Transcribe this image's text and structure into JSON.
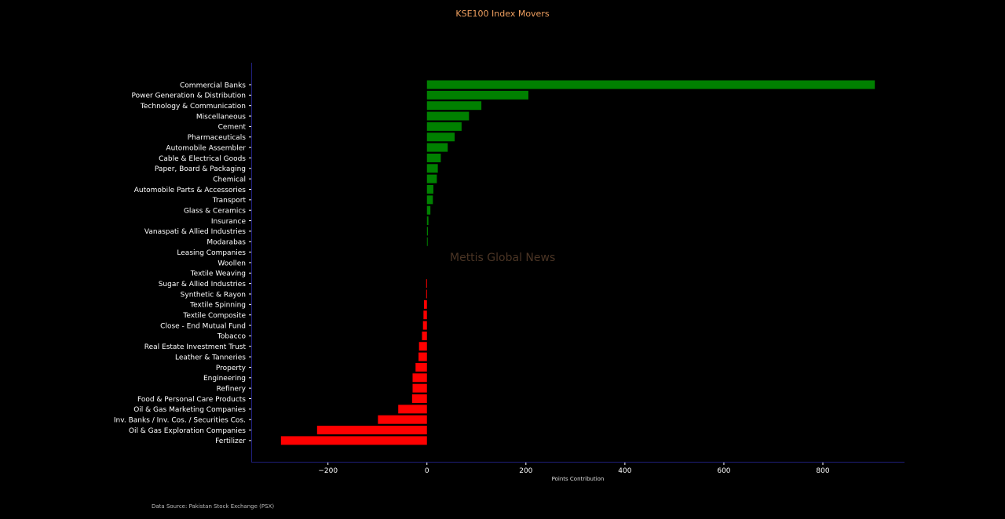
{
  "chart_data": {
    "type": "bar",
    "orientation": "horizontal",
    "title": "KSE100 Index Movers",
    "xlabel": "Points Contribution",
    "ylabel": "",
    "xlim": [
      -355,
      965
    ],
    "xticks": [
      -200,
      0,
      200,
      400,
      600,
      800
    ],
    "xtick_labels": [
      "−200",
      "0",
      "200",
      "400",
      "600",
      "800"
    ],
    "grid": false,
    "positive_color": "#008000",
    "negative_color": "#ff0000",
    "categories": [
      "Commercial Banks",
      "Power Generation & Distribution",
      "Technology & Communication",
      "Miscellaneous",
      "Cement",
      "Pharmaceuticals",
      "Automobile Assembler",
      "Cable & Electrical Goods",
      "Paper, Board & Packaging",
      "Chemical",
      "Automobile Parts & Accessories",
      "Transport",
      "Glass & Ceramics",
      "Insurance",
      "Vanaspati & Allied Industries",
      "Modarabas",
      "Leasing Companies",
      "Woollen",
      "Textile Weaving",
      "Sugar & Allied Industries",
      "Synthetic & Rayon",
      "Textile Spinning",
      "Textile Composite",
      "Close - End Mutual Fund",
      "Tobacco",
      "Real Estate Investment Trust",
      "Leather & Tanneries",
      "Property",
      "Engineering",
      "Refinery",
      "Food & Personal Care Products",
      "Oil & Gas Marketing Companies",
      "Inv. Banks / Inv. Cos. / Securities Cos.",
      "Oil & Gas Exploration Companies",
      "Fertilizer"
    ],
    "values": [
      905,
      205,
      110,
      85,
      70,
      56,
      42,
      28,
      22,
      20,
      13,
      12,
      7,
      3,
      2,
      1.5,
      0,
      0,
      0,
      -1.5,
      -1.5,
      -6,
      -7,
      -8,
      -10,
      -16,
      -17,
      -23,
      -29,
      -29,
      -30,
      -58,
      -99,
      -222,
      -295
    ]
  },
  "watermark": "Mettis Global News",
  "source_note": "Data Source: Pakistan Stock Exchange (PSX)"
}
